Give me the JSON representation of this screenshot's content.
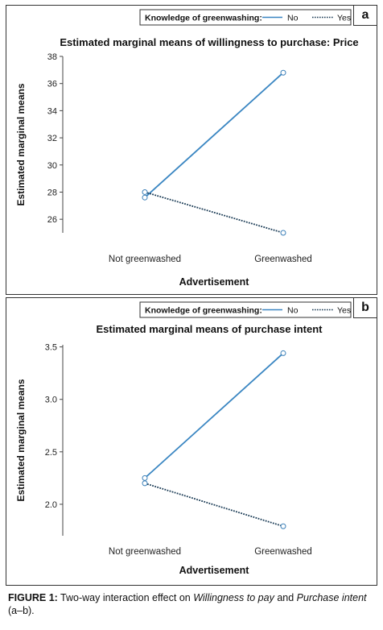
{
  "chart_data": [
    {
      "panel": "a",
      "type": "line",
      "title": "Estimated marginal means of willingness to purchase: Price",
      "xlabel": "Advertisement",
      "ylabel": "Estimated marginal means",
      "categories": [
        "Not greenwashed",
        "Greenwashed"
      ],
      "yticks": [
        "26",
        "28",
        "30",
        "32",
        "34",
        "36",
        "38"
      ],
      "ylim": [
        25,
        38
      ],
      "legend_title": "Knowledge of greenwashing:",
      "legend_position": "top-right",
      "series": [
        {
          "name": "No",
          "values": [
            27.6,
            36.8
          ],
          "color": "#3a86c2",
          "dash": "solid"
        },
        {
          "name": "Yes",
          "values": [
            28.0,
            25.0
          ],
          "color": "#1a3b55",
          "dash": "dotted"
        }
      ]
    },
    {
      "panel": "b",
      "type": "line",
      "title": "Estimated marginal means of purchase intent",
      "xlabel": "Advertisement",
      "ylabel": "Estimated marginal means",
      "categories": [
        "Not greenwashed",
        "Greenwashed"
      ],
      "yticks": [
        "2.0",
        "2.5",
        "3.0",
        "3.5"
      ],
      "ylim": [
        1.7,
        3.52
      ],
      "legend_title": "Knowledge of greenwashing:",
      "legend_position": "top-right",
      "series": [
        {
          "name": "No",
          "values": [
            2.25,
            3.44
          ],
          "color": "#3a86c2",
          "dash": "solid"
        },
        {
          "name": "Yes",
          "values": [
            2.2,
            1.79
          ],
          "color": "#1a3b55",
          "dash": "dotted"
        }
      ]
    }
  ],
  "caption": {
    "label": "FIGURE 1:",
    "pre": " Two-way interaction effect on ",
    "em1": "Willingness to pay",
    "mid": " and ",
    "em2": "Purchase intent",
    "post": " (a–b)."
  }
}
